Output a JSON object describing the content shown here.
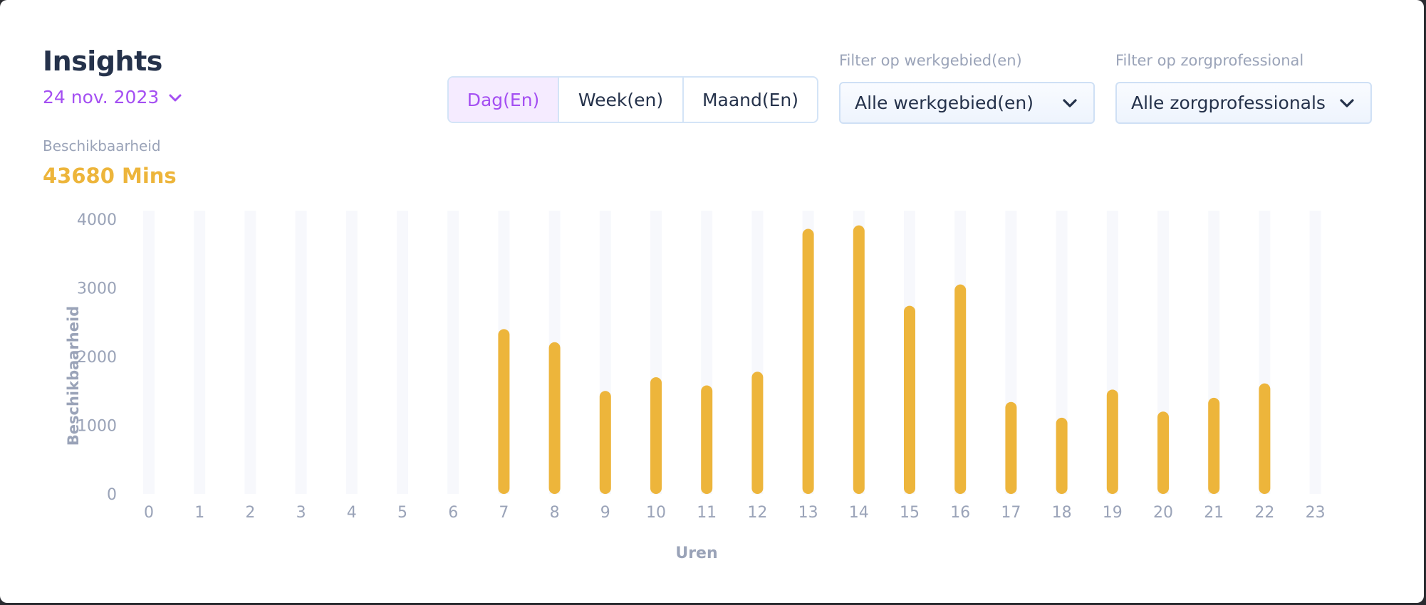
{
  "header": {
    "title": "Insights",
    "date": "24 nov. 2023",
    "metric_label": "Beschikbaarheid",
    "metric_value": "43680 Mins"
  },
  "period_tabs": [
    {
      "label": "Dag(En)",
      "active": true
    },
    {
      "label": "Week(en)",
      "active": false
    },
    {
      "label": "Maand(En)",
      "active": false
    }
  ],
  "filters": {
    "area": {
      "label": "Filter op werkgebied(en)",
      "value": "Alle werkgebied(en)"
    },
    "professional": {
      "label": "Filter op zorgprofessional",
      "value": "Alle zorgprofessionals"
    }
  },
  "colors": {
    "accent": "#a44ff2",
    "bar": "#edb53b",
    "bar_track": "#f7f8fc",
    "axis_text": "#9aa3b8",
    "title": "#25324b"
  },
  "chart_data": {
    "type": "bar",
    "xlabel": "Uren",
    "ylabel": "Beschikbaarheid",
    "categories": [
      "0",
      "1",
      "2",
      "3",
      "4",
      "5",
      "6",
      "7",
      "8",
      "9",
      "10",
      "11",
      "12",
      "13",
      "14",
      "15",
      "16",
      "17",
      "18",
      "19",
      "20",
      "21",
      "22",
      "23"
    ],
    "values": [
      0,
      0,
      0,
      0,
      0,
      0,
      0,
      2400,
      2210,
      1500,
      1700,
      1580,
      1780,
      3860,
      3910,
      2740,
      3050,
      1340,
      1110,
      1520,
      1200,
      1400,
      1610,
      0
    ],
    "yticks": [
      0,
      1000,
      2000,
      3000,
      4000
    ],
    "ylim": [
      0,
      4000
    ],
    "grid": false,
    "legend": false
  }
}
